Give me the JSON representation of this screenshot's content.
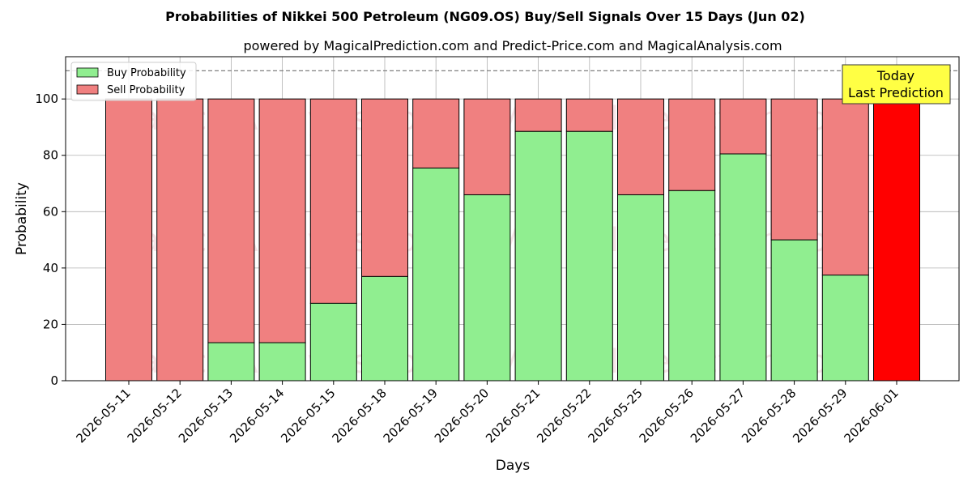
{
  "chart_data": {
    "type": "bar",
    "stacked": true,
    "title": "Probabilities of Nikkei 500 Petroleum (NG09.OS) Buy/Sell Signals Over 15 Days (Jun 02)",
    "subtitle": "powered by MagicalPrediction.com and Predict-Price.com and MagicalAnalysis.com",
    "xlabel": "Days",
    "ylabel": "Probability",
    "ylim": [
      0,
      115
    ],
    "yticks": [
      0,
      20,
      40,
      60,
      80,
      100
    ],
    "grid": true,
    "reference_line": 110,
    "legend_position": "top-left",
    "categories": [
      "2026-05-11",
      "2026-05-12",
      "2026-05-13",
      "2026-05-14",
      "2026-05-15",
      "2026-05-18",
      "2026-05-19",
      "2026-05-20",
      "2026-05-21",
      "2026-05-22",
      "2026-05-25",
      "2026-05-26",
      "2026-05-27",
      "2026-05-28",
      "2026-05-29",
      "2026-06-01"
    ],
    "series": [
      {
        "name": "Buy Probability",
        "color": "#90ee90",
        "values": [
          0,
          0,
          13.5,
          13.5,
          27.5,
          37,
          75.5,
          66,
          88.5,
          88.5,
          66,
          67.5,
          80.5,
          50,
          37.5,
          0
        ]
      },
      {
        "name": "Sell Probability",
        "color": "#f08080",
        "values": [
          100,
          100,
          86.5,
          86.5,
          72.5,
          63,
          24.5,
          34,
          11.5,
          11.5,
          34,
          32.5,
          19.5,
          50,
          62.5,
          100
        ]
      }
    ],
    "highlight": {
      "category": "2026-06-01",
      "color": "#ff0000"
    },
    "annotation": {
      "lines": [
        "Today",
        "Last Prediction"
      ],
      "background": "#ffff44"
    },
    "watermarks": [
      "MagicalAnalysis.com",
      "MagicalPrediction.com"
    ]
  }
}
